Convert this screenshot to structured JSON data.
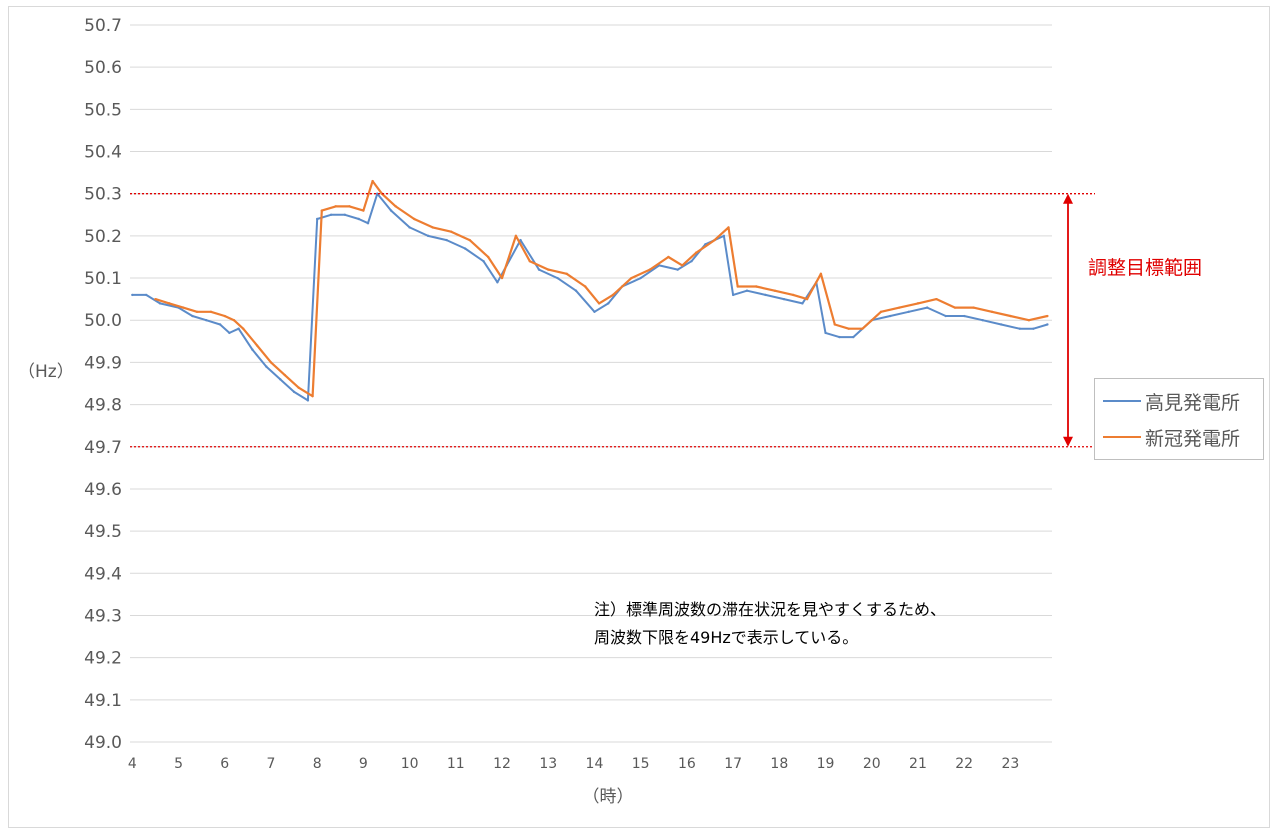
{
  "chart_data": {
    "type": "line",
    "ylabel": "（Hz）",
    "xlabel": "（時）",
    "ylim": [
      49.0,
      50.7
    ],
    "xlim": [
      3.95,
      23.9
    ],
    "yticks": [
      "49.0",
      "49.1",
      "49.2",
      "49.3",
      "49.4",
      "49.5",
      "49.6",
      "49.7",
      "49.8",
      "49.9",
      "50.0",
      "50.1",
      "50.2",
      "50.3",
      "50.4",
      "50.5",
      "50.6",
      "50.7"
    ],
    "xticks": [
      "4",
      "5",
      "6",
      "7",
      "8",
      "9",
      "10",
      "11",
      "12",
      "13",
      "14",
      "15",
      "16",
      "17",
      "18",
      "19",
      "20",
      "21",
      "22",
      "23"
    ],
    "grid": "horizontal",
    "legend_placement": "right",
    "target_range": {
      "low": 49.7,
      "high": 50.3,
      "label": "調整目標範囲",
      "color": "#e00000"
    },
    "annotation": [
      "注）標準周波数の滞在状況を見やすくするため、",
      "周波数下限を49Hzで表示している。"
    ],
    "series": [
      {
        "name": "高見発電所",
        "color": "#5b8bc9",
        "x": [
          4.0,
          4.3,
          4.6,
          5.0,
          5.3,
          5.6,
          5.9,
          6.1,
          6.3,
          6.6,
          6.9,
          7.2,
          7.5,
          7.8,
          8.0,
          8.3,
          8.6,
          8.9,
          9.1,
          9.3,
          9.6,
          10.0,
          10.4,
          10.8,
          11.2,
          11.6,
          11.9,
          12.1,
          12.4,
          12.8,
          13.2,
          13.6,
          14.0,
          14.3,
          14.6,
          15.0,
          15.4,
          15.8,
          16.1,
          16.4,
          16.8,
          17.0,
          17.3,
          17.7,
          18.1,
          18.5,
          18.8,
          19.0,
          19.3,
          19.6,
          20.0,
          20.4,
          20.8,
          21.2,
          21.6,
          22.0,
          22.4,
          22.8,
          23.2,
          23.5,
          23.8
        ],
        "y": [
          50.06,
          50.06,
          50.04,
          50.03,
          50.01,
          50.0,
          49.99,
          49.97,
          49.98,
          49.93,
          49.89,
          49.86,
          49.83,
          49.81,
          50.24,
          50.25,
          50.25,
          50.24,
          50.23,
          50.3,
          50.26,
          50.22,
          50.2,
          50.19,
          50.17,
          50.14,
          50.09,
          50.13,
          50.19,
          50.12,
          50.1,
          50.07,
          50.02,
          50.04,
          50.08,
          50.1,
          50.13,
          50.12,
          50.14,
          50.18,
          50.2,
          50.06,
          50.07,
          50.06,
          50.05,
          50.04,
          50.09,
          49.97,
          49.96,
          49.96,
          50.0,
          50.01,
          50.02,
          50.03,
          50.01,
          50.01,
          50.0,
          49.99,
          49.98,
          49.98,
          49.99
        ]
      },
      {
        "name": "新冠発電所",
        "color": "#ed7d31",
        "x": [
          4.5,
          4.8,
          5.1,
          5.4,
          5.7,
          6.0,
          6.2,
          6.4,
          6.7,
          7.0,
          7.3,
          7.6,
          7.9,
          8.1,
          8.4,
          8.7,
          9.0,
          9.2,
          9.4,
          9.7,
          10.1,
          10.5,
          10.9,
          11.3,
          11.7,
          12.0,
          12.3,
          12.6,
          13.0,
          13.4,
          13.8,
          14.1,
          14.4,
          14.8,
          15.2,
          15.6,
          15.9,
          16.2,
          16.6,
          16.9,
          17.1,
          17.5,
          17.9,
          18.3,
          18.6,
          18.9,
          19.2,
          19.5,
          19.8,
          20.2,
          20.6,
          21.0,
          21.4,
          21.8,
          22.2,
          22.6,
          23.0,
          23.4,
          23.8
        ],
        "y": [
          50.05,
          50.04,
          50.03,
          50.02,
          50.02,
          50.01,
          50.0,
          49.98,
          49.94,
          49.9,
          49.87,
          49.84,
          49.82,
          50.26,
          50.27,
          50.27,
          50.26,
          50.33,
          50.3,
          50.27,
          50.24,
          50.22,
          50.21,
          50.19,
          50.15,
          50.1,
          50.2,
          50.14,
          50.12,
          50.11,
          50.08,
          50.04,
          50.06,
          50.1,
          50.12,
          50.15,
          50.13,
          50.16,
          50.19,
          50.22,
          50.08,
          50.08,
          50.07,
          50.06,
          50.05,
          50.11,
          49.99,
          49.98,
          49.98,
          50.02,
          50.03,
          50.04,
          50.05,
          50.03,
          50.03,
          50.02,
          50.01,
          50.0,
          50.01
        ]
      }
    ]
  }
}
